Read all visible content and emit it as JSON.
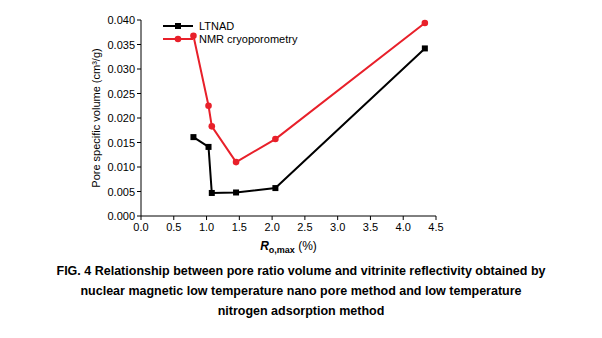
{
  "chart_data": {
    "type": "line",
    "y_label": "Pore specific volume (cm³/g)",
    "x_label": [
      "R",
      "o,max",
      " (%)"
    ],
    "caption": [
      "FIG. 4 Relationship between pore ratio volume and vitrinite reflectivity obtained by",
      "nuclear magnetic low temperature nano pore method and low temperature",
      "nitrogen adsorption method"
    ],
    "x": [
      0.8,
      1.03,
      1.08,
      1.45,
      2.05,
      4.33
    ],
    "series": [
      {
        "name": "LTNAD",
        "color": "#000000",
        "marker": "square",
        "values": [
          0.0161,
          0.0141,
          0.0047,
          0.0048,
          0.0057,
          0.0342
        ]
      },
      {
        "name": "NMR cryoporometry",
        "color": "#e8202a",
        "marker": "circle",
        "values": [
          0.0368,
          0.0225,
          0.0183,
          0.011,
          0.0157,
          0.0394
        ]
      }
    ],
    "xlim": [
      0,
      4.5
    ],
    "xticks": [
      {
        "value": 0,
        "label": "0.0"
      },
      {
        "value": 0.5,
        "label": "0.5"
      },
      {
        "value": 1,
        "label": "1.0"
      },
      {
        "value": 1.5,
        "label": "1.5"
      },
      {
        "value": 2,
        "label": "2.0"
      },
      {
        "value": 2.5,
        "label": "2.5"
      },
      {
        "value": 3,
        "label": "3.0"
      },
      {
        "value": 3.5,
        "label": "3.5"
      },
      {
        "value": 4,
        "label": "4.0"
      },
      {
        "value": 4.5,
        "label": "4.5"
      }
    ],
    "ylim": [
      0,
      0.04
    ],
    "yticks": [
      {
        "value": 0,
        "label": "0.000"
      },
      {
        "value": 0.005,
        "label": "0.005"
      },
      {
        "value": 0.01,
        "label": "0.010"
      },
      {
        "value": 0.015,
        "label": "0.015"
      },
      {
        "value": 0.02,
        "label": "0.020"
      },
      {
        "value": 0.025,
        "label": "0.025"
      },
      {
        "value": 0.03,
        "label": "0.030"
      },
      {
        "value": 0.035,
        "label": "0.035"
      },
      {
        "value": 0.04,
        "label": "0.040"
      }
    ],
    "grid": false,
    "legend": "upper left"
  }
}
